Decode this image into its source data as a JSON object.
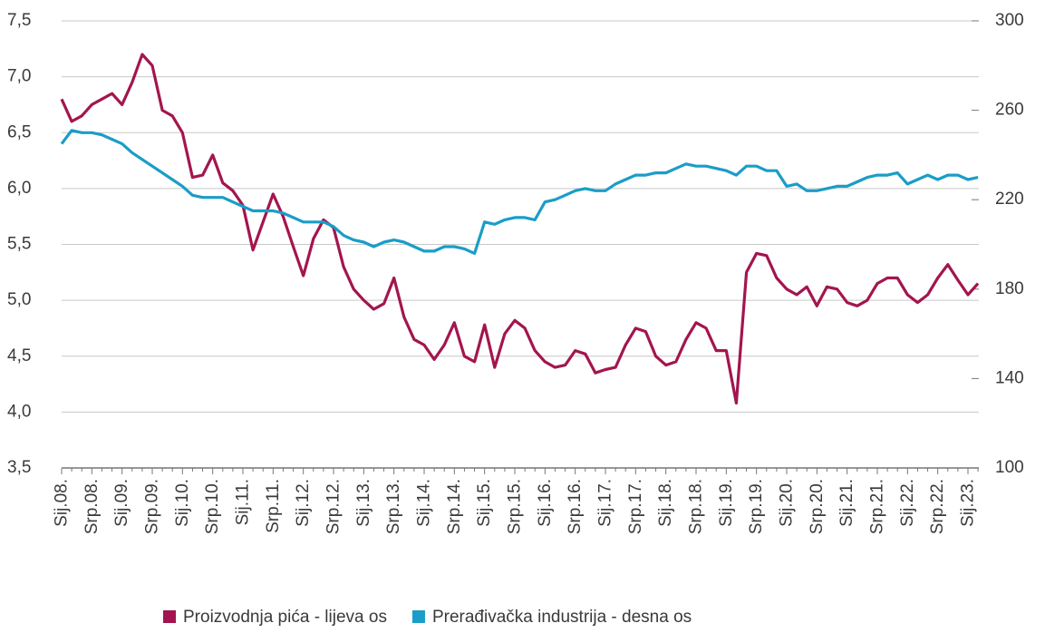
{
  "chart_data": {
    "type": "line",
    "categories": [
      "Sij.08.",
      null,
      null,
      "Srp.08.",
      null,
      null,
      "Sij.09.",
      null,
      null,
      "Srp.09.",
      null,
      null,
      "Sij.10.",
      null,
      null,
      "Srp.10.",
      null,
      null,
      "Sij.11.",
      null,
      null,
      "Srp.11.",
      null,
      null,
      "Sij.12.",
      null,
      null,
      "Srp.12.",
      null,
      null,
      "Sij.13.",
      null,
      null,
      "Srp.13.",
      null,
      null,
      "Sij.14.",
      null,
      null,
      "Srp.14.",
      null,
      null,
      "Sij.15.",
      null,
      null,
      "Srp.15.",
      null,
      null,
      "Sij.16.",
      null,
      null,
      "Srp.16.",
      null,
      null,
      "Sij.17.",
      null,
      null,
      "Srp.17.",
      null,
      null,
      "Sij.18.",
      null,
      null,
      "Srp.18.",
      null,
      null,
      "Sij.19.",
      null,
      null,
      "Srp.19.",
      null,
      null,
      "Sij.20.",
      null,
      null,
      "Srp.20.",
      null,
      null,
      "Sij.21.",
      null,
      null,
      "Srp.21.",
      null,
      null,
      "Sij.22.",
      null,
      null,
      "Srp.22.",
      null,
      null,
      "Sij.23.",
      null
    ],
    "series": [
      {
        "name": "Proizvodnja pića - lijeva os",
        "color": "#a3154e",
        "values": [
          6.8,
          6.6,
          6.65,
          6.75,
          6.8,
          6.85,
          6.75,
          6.95,
          7.2,
          7.1,
          6.7,
          6.65,
          6.5,
          6.1,
          6.12,
          6.3,
          6.05,
          5.98,
          5.85,
          5.45,
          5.7,
          5.95,
          5.75,
          5.48,
          5.22,
          5.55,
          5.72,
          5.65,
          5.3,
          5.1,
          5.0,
          4.92,
          4.97,
          5.2,
          4.85,
          4.65,
          4.6,
          4.47,
          4.6,
          4.8,
          4.5,
          4.45,
          4.78,
          4.4,
          4.7,
          4.82,
          4.75,
          4.55,
          4.45,
          4.4,
          4.42,
          4.55,
          4.52,
          4.35,
          4.38,
          4.4,
          4.6,
          4.75,
          4.72,
          4.5,
          4.42,
          4.45,
          4.65,
          4.8,
          4.75,
          4.55,
          4.55,
          4.08,
          5.25,
          5.42,
          5.4,
          5.2,
          5.1,
          5.05,
          5.12,
          4.95,
          5.12,
          5.1,
          4.98,
          4.95,
          5.0,
          5.15,
          5.2,
          5.2,
          5.05,
          4.98,
          5.05,
          5.2,
          5.32,
          5.18,
          5.05,
          5.15
        ]
      },
      {
        "name": "Prerađivačka industrija - desna os",
        "color": "#1a9dc8",
        "axis": "y2",
        "values": [
          245,
          251,
          250,
          250,
          249,
          247,
          245,
          241,
          238,
          235,
          232,
          229,
          226,
          222,
          221,
          221,
          221,
          219,
          217,
          215,
          215,
          215,
          214,
          212,
          210,
          210,
          210,
          208,
          204,
          202,
          201,
          199,
          201,
          202,
          201,
          199,
          197,
          197,
          199,
          199,
          198,
          196,
          210,
          209,
          211,
          212,
          212,
          211,
          219,
          220,
          222,
          224,
          225,
          224,
          224,
          227,
          229,
          231,
          231,
          232,
          232,
          234,
          236,
          235,
          235,
          234,
          233,
          231,
          235,
          235,
          233,
          233,
          226,
          227,
          224,
          224,
          225,
          226,
          226,
          228,
          230,
          231,
          231,
          232,
          227,
          229,
          231,
          229,
          231,
          231,
          229,
          230
        ]
      }
    ],
    "ylim": [
      3.5,
      7.5
    ],
    "yticks": [
      {
        "value": 3.5,
        "label": "3,5"
      },
      {
        "value": 4.0,
        "label": "4,0"
      },
      {
        "value": 4.5,
        "label": "4,5"
      },
      {
        "value": 5.0,
        "label": "5,0"
      },
      {
        "value": 5.5,
        "label": "5,5"
      },
      {
        "value": 6.0,
        "label": "6,0"
      },
      {
        "value": 6.5,
        "label": "6,5"
      },
      {
        "value": 7.0,
        "label": "7,0"
      },
      {
        "value": 7.5,
        "label": "7,5"
      }
    ],
    "y2lim": [
      100,
      300
    ],
    "y2ticks": [
      100,
      140,
      180,
      220,
      260,
      300
    ],
    "grid": true,
    "legend": "bottom"
  }
}
